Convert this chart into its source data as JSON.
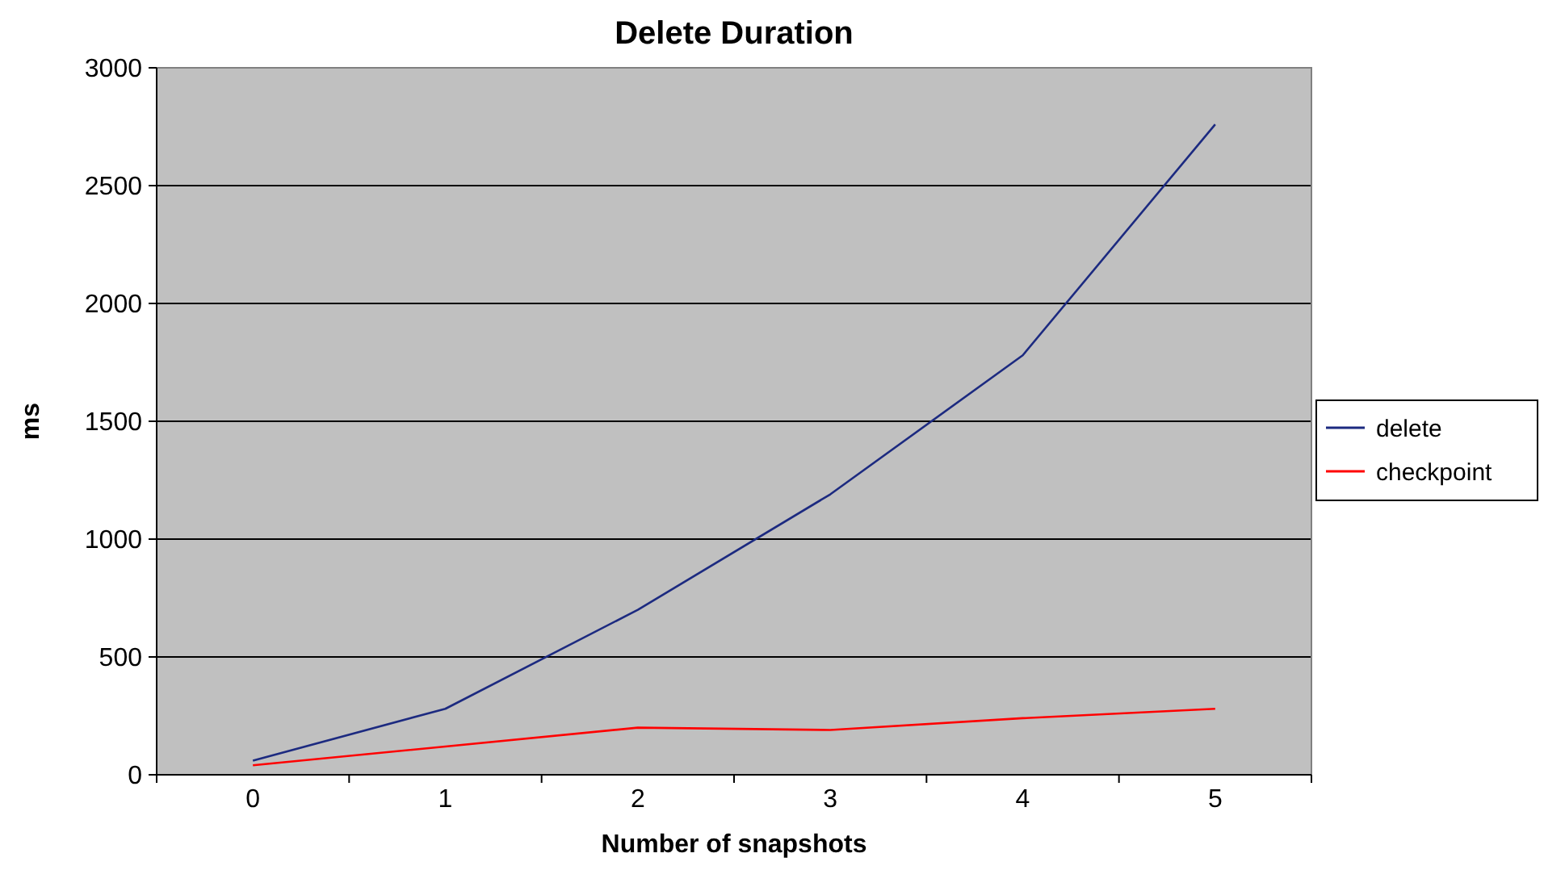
{
  "chart_data": {
    "type": "line",
    "title": "Delete Duration",
    "xlabel": "Number of snapshots",
    "ylabel": "ms",
    "categories": [
      "0",
      "1",
      "2",
      "3",
      "4",
      "5"
    ],
    "series": [
      {
        "name": "delete",
        "color": "#1c2a80",
        "values": [
          60,
          280,
          700,
          1190,
          1780,
          2760
        ]
      },
      {
        "name": "checkpoint",
        "color": "#ff0000",
        "values": [
          40,
          120,
          200,
          190,
          240,
          280
        ]
      }
    ],
    "ylim": [
      0,
      3000
    ],
    "yticks": [
      0,
      500,
      1000,
      1500,
      2000,
      2500,
      3000
    ],
    "grid": "y",
    "legend": "right",
    "marker": "none",
    "line_style": "solid"
  }
}
